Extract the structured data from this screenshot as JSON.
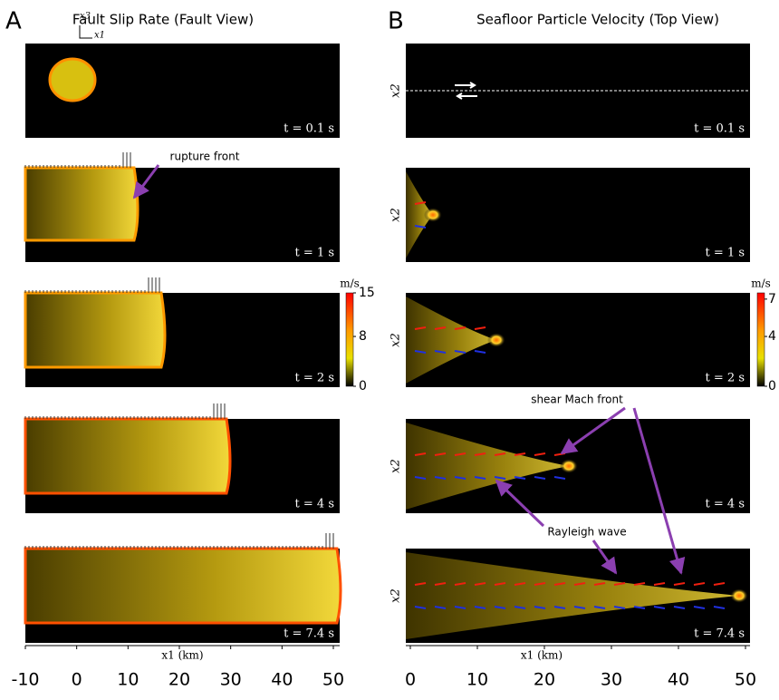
{
  "panel_a": {
    "letter": "A",
    "title": "Fault Slip Rate (Fault View)",
    "corner_axes": [
      "x3",
      "x1"
    ],
    "snapshots": [
      "t = 0.1 s",
      "t = 1 s",
      "t = 2 s",
      "t = 4 s",
      "t = 7.4 s"
    ],
    "annotation": "rupture front",
    "colorbar": {
      "unit": "m/s",
      "clim": [
        0,
        15
      ],
      "ticks": [
        0,
        8,
        15
      ]
    },
    "x_axis": {
      "label": "x1 (km)",
      "xlim": [
        -10,
        50
      ],
      "xticks": [
        -10,
        0,
        10,
        20,
        30,
        40,
        50
      ]
    }
  },
  "panel_b": {
    "letter": "B",
    "title": "Seafloor Particle Velocity (Top View)",
    "row_axis_label": "x2",
    "snapshots": [
      "t = 0.1 s",
      "t = 1 s",
      "t = 2 s",
      "t = 4 s",
      "t = 7.4 s"
    ],
    "annotations": [
      "shear Mach front",
      "Rayleigh wave"
    ],
    "colorbar": {
      "unit": "m/s",
      "clim": [
        0,
        7.5
      ],
      "ticks": [
        0,
        4,
        7
      ]
    },
    "x_axis": {
      "label": "x1 (km)",
      "xlim": [
        0,
        50
      ],
      "xticks": [
        0,
        10,
        20,
        30,
        40,
        50
      ]
    }
  }
}
